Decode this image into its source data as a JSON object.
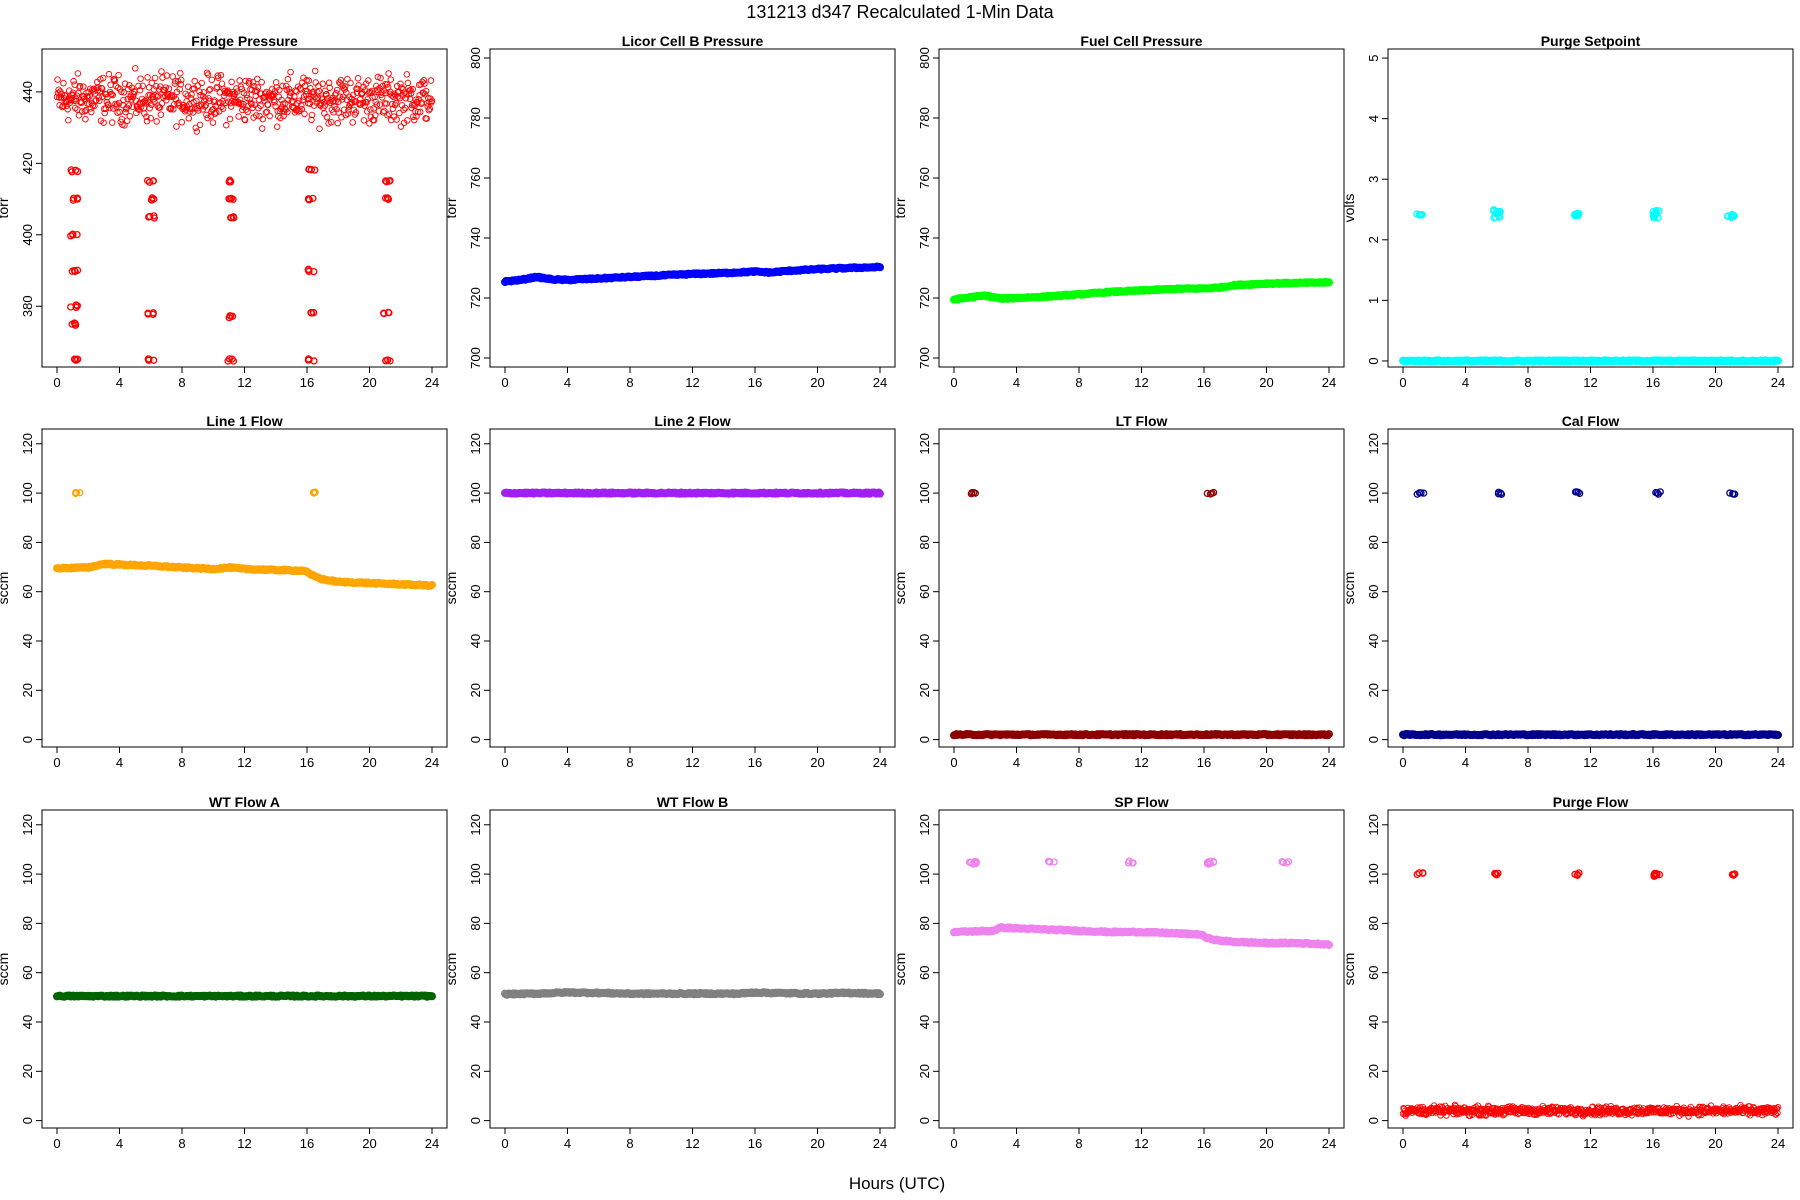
{
  "figure": {
    "supertitle": "131213   d347   Recalculated 1-Min Data",
    "xlabel": "Hours (UTC)"
  },
  "chart_data": [
    {
      "type": "scatter",
      "title": "Fridge Pressure",
      "ylabel": "torr",
      "color": "#ff0000",
      "marker": "open-circle",
      "xlim": [
        0,
        24
      ],
      "xticks": [
        0,
        4,
        8,
        12,
        16,
        20,
        24
      ],
      "ylim": [
        363,
        452
      ],
      "yticks": [
        380,
        400,
        420,
        440
      ],
      "series": [
        {
          "kind": "noisy-band",
          "x": [
            0,
            24
          ],
          "y": [
            438,
            438
          ],
          "spread": 6
        },
        {
          "kind": "cluster",
          "x": 1.1,
          "y": [
            365,
            375,
            380,
            390,
            400,
            410,
            418
          ]
        },
        {
          "kind": "cluster",
          "x": 6.0,
          "y": [
            365,
            378,
            405,
            410,
            415
          ]
        },
        {
          "kind": "cluster",
          "x": 11.1,
          "y": [
            365,
            377,
            405,
            410,
            415
          ]
        },
        {
          "kind": "cluster",
          "x": 16.3,
          "y": [
            365,
            378,
            390,
            410,
            418
          ]
        },
        {
          "kind": "cluster",
          "x": 21.1,
          "y": [
            365,
            378,
            410,
            415
          ]
        }
      ]
    },
    {
      "type": "scatter",
      "title": "Licor Cell B Pressure",
      "ylabel": "torr",
      "color": "#0000ff",
      "marker": "open-circle",
      "xlim": [
        0,
        24
      ],
      "xticks": [
        0,
        4,
        8,
        12,
        16,
        20,
        24
      ],
      "ylim": [
        697,
        803
      ],
      "yticks": [
        700,
        720,
        740,
        760,
        780,
        800
      ],
      "series": [
        {
          "kind": "line",
          "x": [
            0,
            1,
            2,
            3,
            4,
            6,
            8,
            10,
            12,
            14,
            16,
            17,
            18,
            20,
            22,
            24
          ],
          "y": [
            725.5,
            726,
            727,
            726.2,
            726,
            726.5,
            727,
            727.5,
            728,
            728.3,
            728.8,
            728.5,
            729,
            729.6,
            730,
            730.3
          ]
        }
      ]
    },
    {
      "type": "scatter",
      "title": "Fuel Cell Pressure",
      "ylabel": "torr",
      "color": "#00ff00",
      "marker": "open-circle",
      "xlim": [
        0,
        24
      ],
      "xticks": [
        0,
        4,
        8,
        12,
        16,
        20,
        24
      ],
      "ylim": [
        697,
        803
      ],
      "yticks": [
        700,
        720,
        740,
        760,
        780,
        800
      ],
      "series": [
        {
          "kind": "line",
          "x": [
            0,
            1,
            2,
            3,
            4,
            6,
            8,
            10,
            12,
            14,
            16,
            17,
            18,
            20,
            22,
            24
          ],
          "y": [
            719.5,
            720.2,
            720.8,
            719.8,
            720,
            720.5,
            721.2,
            722,
            722.5,
            723,
            723.2,
            723.5,
            724.3,
            724.8,
            725,
            725.2
          ]
        }
      ]
    },
    {
      "type": "scatter",
      "title": "Purge Setpoint",
      "ylabel": "volts",
      "color": "#00ffff",
      "marker": "open-circle",
      "xlim": [
        0,
        24
      ],
      "xticks": [
        0,
        4,
        8,
        12,
        16,
        20,
        24
      ],
      "ylim": [
        -0.1,
        5.15
      ],
      "yticks": [
        0,
        1,
        2,
        3,
        4,
        5
      ],
      "series": [
        {
          "kind": "line",
          "x": [
            0,
            24
          ],
          "y": [
            0,
            0
          ]
        },
        {
          "kind": "cluster",
          "x": 1.1,
          "y": [
            2.4,
            2.42
          ]
        },
        {
          "kind": "cluster",
          "x": 6.0,
          "y": [
            2.38,
            2.44,
            2.48
          ]
        },
        {
          "kind": "cluster",
          "x": 11.1,
          "y": [
            2.4,
            2.42
          ]
        },
        {
          "kind": "cluster",
          "x": 16.2,
          "y": [
            2.37,
            2.43,
            2.46
          ]
        },
        {
          "kind": "cluster",
          "x": 21.0,
          "y": [
            2.38,
            2.4
          ]
        }
      ]
    },
    {
      "type": "scatter",
      "title": "Line 1 Flow",
      "ylabel": "sccm",
      "color": "#ffa500",
      "marker": "open-circle",
      "xlim": [
        0,
        24
      ],
      "xticks": [
        0,
        4,
        8,
        12,
        16,
        20,
        24
      ],
      "ylim": [
        -3,
        126
      ],
      "yticks": [
        0,
        20,
        40,
        60,
        80,
        100,
        120
      ],
      "series": [
        {
          "kind": "line",
          "x": [
            0,
            2,
            3,
            4,
            6,
            8,
            10,
            11,
            12,
            14,
            15.9,
            16.2,
            17,
            18,
            20,
            22,
            24
          ],
          "y": [
            69.5,
            69.8,
            71.3,
            71,
            70.5,
            69.8,
            69.2,
            69.8,
            69.2,
            68.8,
            68.5,
            67,
            65,
            64,
            63.5,
            63,
            62.5
          ]
        },
        {
          "kind": "cluster",
          "x": 1.3,
          "y": [
            100
          ]
        },
        {
          "kind": "cluster",
          "x": 16.4,
          "y": [
            100
          ]
        }
      ]
    },
    {
      "type": "scatter",
      "title": "Line 2 Flow",
      "ylabel": "sccm",
      "color": "#a020f0",
      "marker": "open-circle",
      "xlim": [
        0,
        24
      ],
      "xticks": [
        0,
        4,
        8,
        12,
        16,
        20,
        24
      ],
      "ylim": [
        -3,
        126
      ],
      "yticks": [
        0,
        20,
        40,
        60,
        80,
        100,
        120
      ],
      "series": [
        {
          "kind": "line",
          "x": [
            0,
            24
          ],
          "y": [
            100,
            100
          ]
        }
      ]
    },
    {
      "type": "scatter",
      "title": "LT Flow",
      "ylabel": "sccm",
      "color": "#8b0000",
      "marker": "open-circle",
      "xlim": [
        0,
        24
      ],
      "xticks": [
        0,
        4,
        8,
        12,
        16,
        20,
        24
      ],
      "ylim": [
        -3,
        126
      ],
      "yticks": [
        0,
        20,
        40,
        60,
        80,
        100,
        120
      ],
      "series": [
        {
          "kind": "line",
          "x": [
            0,
            24
          ],
          "y": [
            2,
            2
          ]
        },
        {
          "kind": "cluster",
          "x": 1.3,
          "y": [
            100
          ]
        },
        {
          "kind": "cluster",
          "x": 16.4,
          "y": [
            100
          ]
        }
      ]
    },
    {
      "type": "scatter",
      "title": "Cal Flow",
      "ylabel": "sccm",
      "color": "#00008b",
      "marker": "open-circle",
      "xlim": [
        0,
        24
      ],
      "xticks": [
        0,
        4,
        8,
        12,
        16,
        20,
        24
      ],
      "ylim": [
        -3,
        126
      ],
      "yticks": [
        0,
        20,
        40,
        60,
        80,
        100,
        120
      ],
      "series": [
        {
          "kind": "line",
          "x": [
            0,
            24
          ],
          "y": [
            2,
            2
          ]
        },
        {
          "kind": "cluster",
          "x": 1.1,
          "y": [
            100
          ]
        },
        {
          "kind": "cluster",
          "x": 6.1,
          "y": [
            100
          ]
        },
        {
          "kind": "cluster",
          "x": 11.1,
          "y": [
            100
          ]
        },
        {
          "kind": "cluster",
          "x": 16.3,
          "y": [
            100
          ]
        },
        {
          "kind": "cluster",
          "x": 21.1,
          "y": [
            100
          ]
        }
      ]
    },
    {
      "type": "scatter",
      "title": "WT Flow A",
      "ylabel": "sccm",
      "color": "#006400",
      "marker": "open-circle",
      "xlim": [
        0,
        24
      ],
      "xticks": [
        0,
        4,
        8,
        12,
        16,
        20,
        24
      ],
      "ylim": [
        -3,
        126
      ],
      "yticks": [
        0,
        20,
        40,
        60,
        80,
        100,
        120
      ],
      "series": [
        {
          "kind": "line",
          "x": [
            0,
            24
          ],
          "y": [
            50.5,
            50.5
          ]
        }
      ]
    },
    {
      "type": "scatter",
      "title": "WT Flow B",
      "ylabel": "sccm",
      "color": "#808080",
      "marker": "open-circle",
      "xlim": [
        0,
        24
      ],
      "xticks": [
        0,
        4,
        8,
        12,
        16,
        20,
        24
      ],
      "ylim": [
        -3,
        126
      ],
      "yticks": [
        0,
        20,
        40,
        60,
        80,
        100,
        120
      ],
      "series": [
        {
          "kind": "line",
          "x": [
            0,
            2,
            4,
            6,
            8,
            12,
            15,
            16,
            17,
            20,
            22,
            24
          ],
          "y": [
            51.3,
            51.5,
            52,
            51.8,
            51.5,
            51.5,
            51.5,
            52,
            51.8,
            51.5,
            51.8,
            51.5
          ]
        }
      ]
    },
    {
      "type": "scatter",
      "title": "SP Flow",
      "ylabel": "sccm",
      "color": "#ee82ee",
      "marker": "open-circle",
      "xlim": [
        0,
        24
      ],
      "xticks": [
        0,
        4,
        8,
        12,
        16,
        20,
        24
      ],
      "ylim": [
        -3,
        126
      ],
      "yticks": [
        0,
        20,
        40,
        60,
        80,
        100,
        120
      ],
      "series": [
        {
          "kind": "line",
          "x": [
            0,
            1.5,
            2.5,
            3,
            4,
            6,
            8,
            10,
            12,
            14,
            15.8,
            16.2,
            17,
            18,
            20,
            22,
            24
          ],
          "y": [
            76.5,
            76.8,
            77,
            78.3,
            78,
            77.5,
            77,
            76.5,
            76.5,
            76,
            75.5,
            74,
            73,
            72.5,
            72,
            72,
            71.5
          ]
        },
        {
          "kind": "cluster",
          "x": 1.2,
          "y": [
            104.5,
            105
          ]
        },
        {
          "kind": "cluster",
          "x": 6.2,
          "y": [
            105
          ]
        },
        {
          "kind": "cluster",
          "x": 11.3,
          "y": [
            105
          ]
        },
        {
          "kind": "cluster",
          "x": 16.4,
          "y": [
            104.5,
            105
          ]
        },
        {
          "kind": "cluster",
          "x": 21.2,
          "y": [
            105
          ]
        }
      ]
    },
    {
      "type": "scatter",
      "title": "Purge Flow",
      "ylabel": "sccm",
      "color": "#ff0000",
      "marker": "open-circle",
      "xlim": [
        0,
        24
      ],
      "xticks": [
        0,
        4,
        8,
        12,
        16,
        20,
        24
      ],
      "ylim": [
        -3,
        126
      ],
      "yticks": [
        0,
        20,
        40,
        60,
        80,
        100,
        120
      ],
      "series": [
        {
          "kind": "noisy-band",
          "x": [
            0,
            24
          ],
          "y": [
            4,
            4
          ],
          "spread": 1.6
        },
        {
          "kind": "cluster",
          "x": 1.1,
          "y": [
            100
          ]
        },
        {
          "kind": "cluster",
          "x": 6.0,
          "y": [
            100
          ]
        },
        {
          "kind": "cluster",
          "x": 11.1,
          "y": [
            100
          ]
        },
        {
          "kind": "cluster",
          "x": 16.2,
          "y": [
            99.5,
            100
          ]
        },
        {
          "kind": "cluster",
          "x": 21.1,
          "y": [
            100
          ]
        }
      ]
    }
  ]
}
